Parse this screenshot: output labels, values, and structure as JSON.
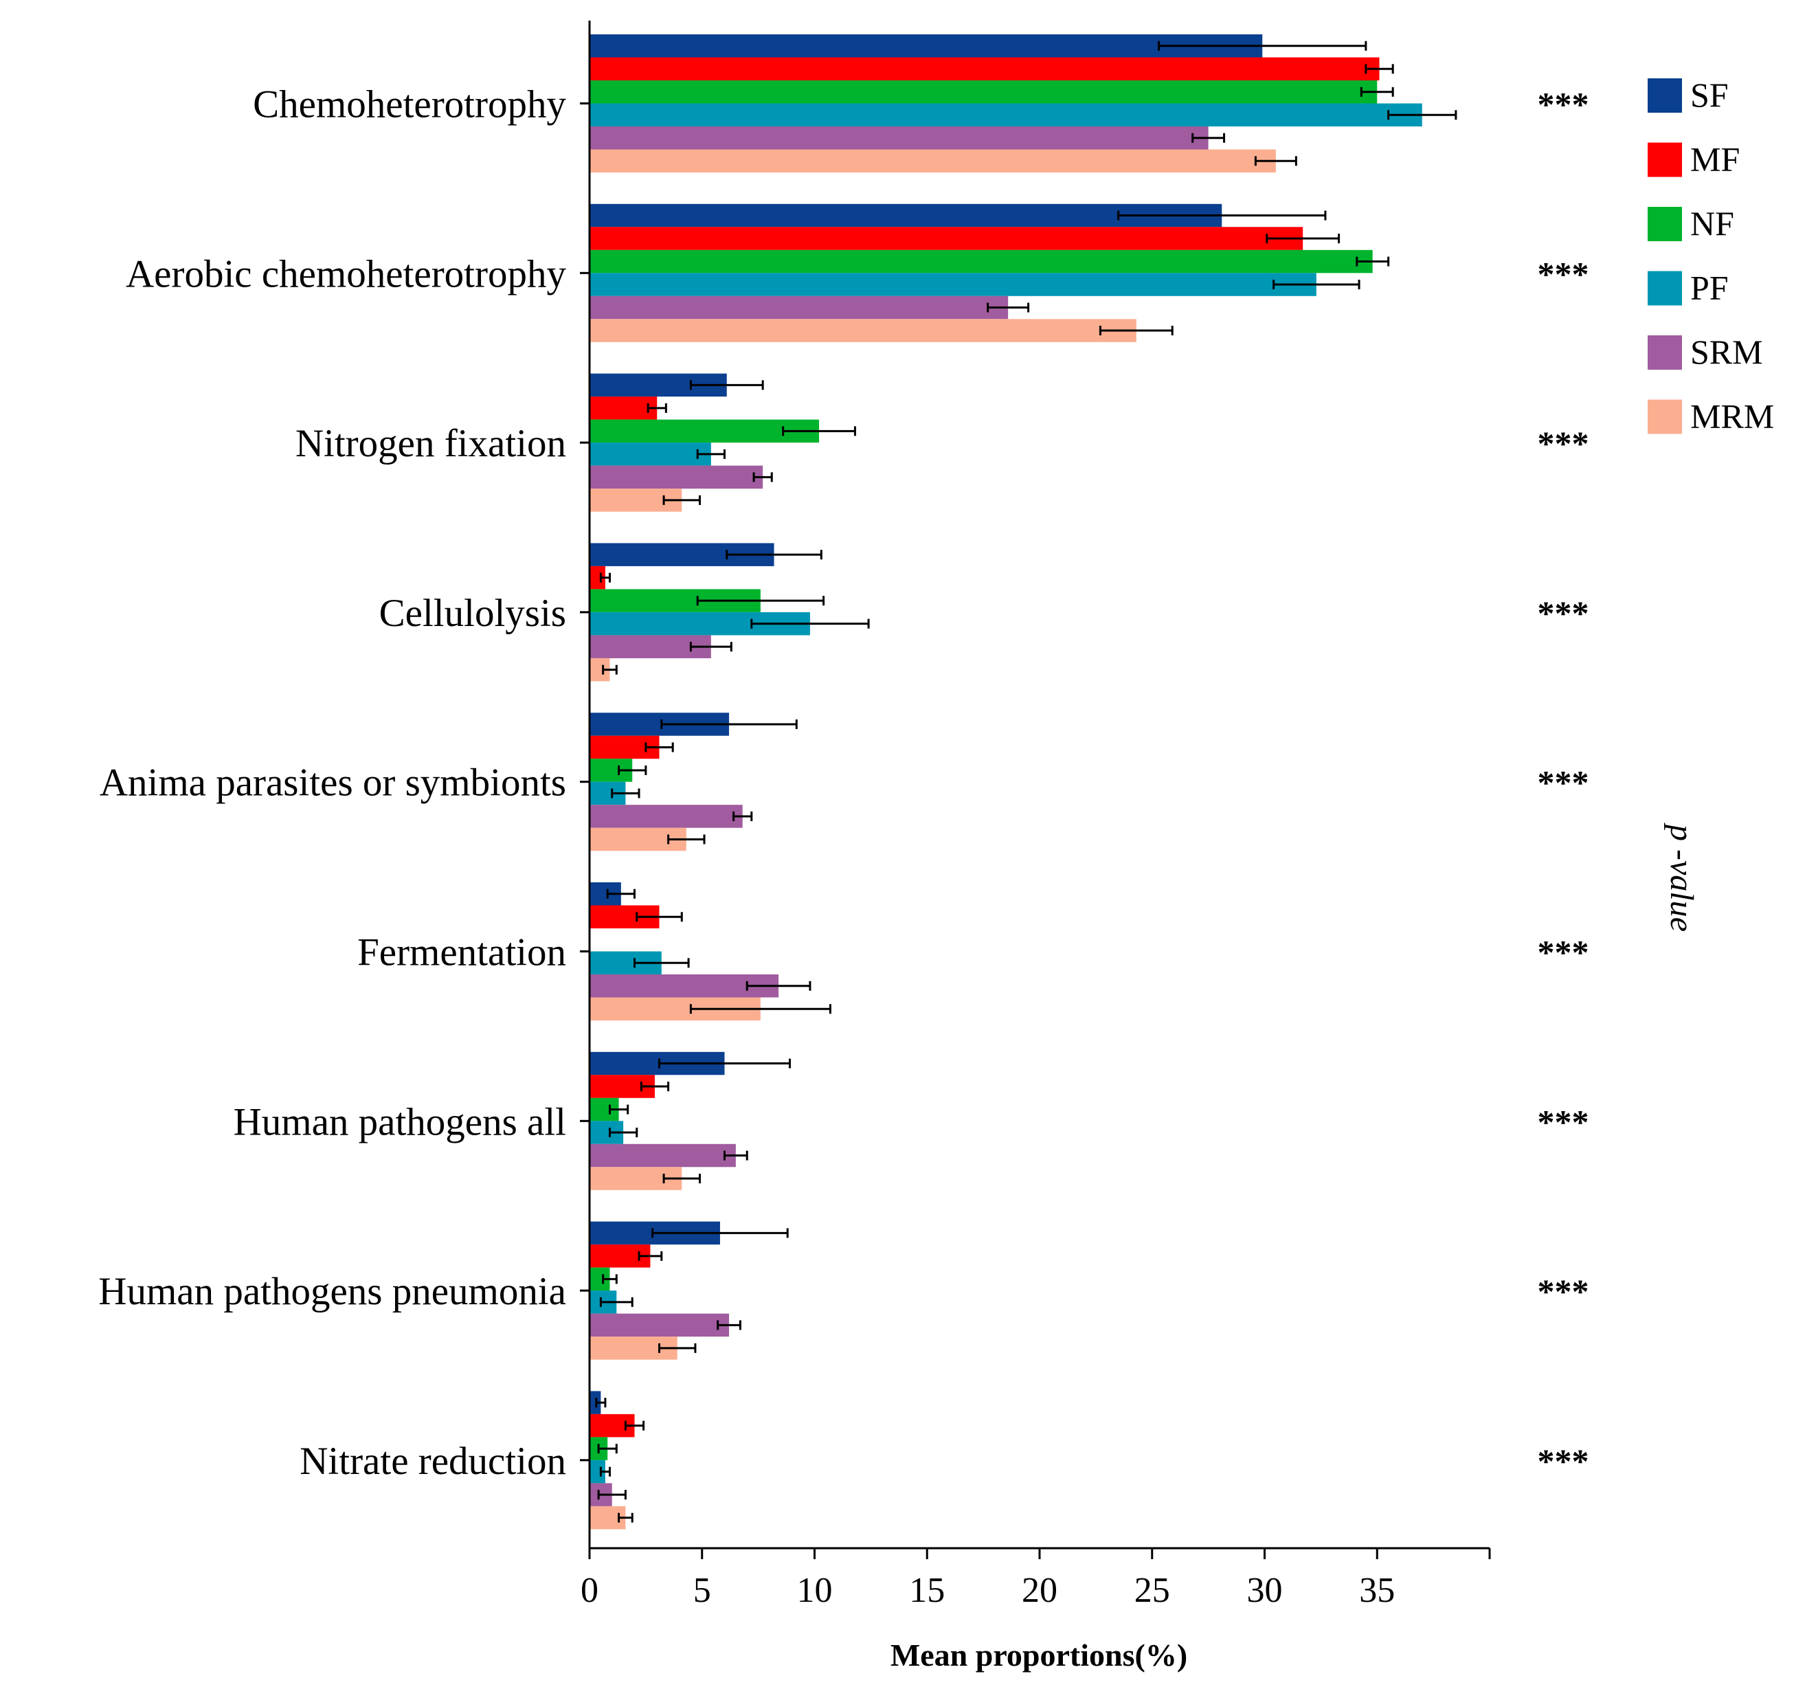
{
  "chart_data": {
    "type": "bar",
    "orientation": "horizontal",
    "title": "",
    "xlabel": "Mean proportions(%)",
    "ylabel": "",
    "side_label": "p -value",
    "xlim": [
      0,
      40
    ],
    "xticks": [
      0,
      5,
      10,
      15,
      20,
      25,
      30,
      35
    ],
    "grid": false,
    "legend_position": "top-right",
    "categories": [
      "Chemoheterotrophy",
      "Aerobic chemoheterotrophy",
      "Nitrogen fixation",
      "Cellulolysis",
      "Anima parasites or symbionts",
      "Fermentation",
      "Human pathogens all",
      "Human pathogens pneumonia",
      "Nitrate  reduction"
    ],
    "significance": [
      "***",
      "***",
      "***",
      "***",
      "***",
      "***",
      "***",
      "***",
      "***"
    ],
    "series": [
      {
        "name": "SF",
        "color": "#0b3f8f",
        "values": [
          29.9,
          28.1,
          6.1,
          8.2,
          6.2,
          1.4,
          6.0,
          5.8,
          0.5
        ],
        "errors": [
          4.6,
          4.6,
          1.6,
          2.1,
          3.0,
          0.6,
          2.9,
          3.0,
          0.2
        ]
      },
      {
        "name": "MF",
        "color": "#ff0000",
        "values": [
          35.1,
          31.7,
          3.0,
          0.7,
          3.1,
          3.1,
          2.9,
          2.7,
          2.0
        ],
        "errors": [
          0.6,
          1.6,
          0.4,
          0.2,
          0.6,
          1.0,
          0.6,
          0.5,
          0.4
        ]
      },
      {
        "name": "NF",
        "color": "#00b32d",
        "values": [
          35.0,
          34.8,
          10.2,
          7.6,
          1.9,
          0.0,
          1.3,
          0.9,
          0.8
        ],
        "errors": [
          0.7,
          0.7,
          1.6,
          2.8,
          0.6,
          0.0,
          0.4,
          0.3,
          0.4
        ]
      },
      {
        "name": "PF",
        "color": "#0097b4",
        "values": [
          37.0,
          32.3,
          5.4,
          9.8,
          1.6,
          3.2,
          1.5,
          1.2,
          0.7
        ],
        "errors": [
          1.5,
          1.9,
          0.6,
          2.6,
          0.6,
          1.2,
          0.6,
          0.7,
          0.2
        ]
      },
      {
        "name": "SRM",
        "color": "#a05c9e",
        "values": [
          27.5,
          18.6,
          7.7,
          5.4,
          6.8,
          8.4,
          6.5,
          6.2,
          1.0
        ],
        "errors": [
          0.7,
          0.9,
          0.4,
          0.9,
          0.4,
          1.4,
          0.5,
          0.5,
          0.6
        ]
      },
      {
        "name": "MRM",
        "color": "#fcae91",
        "values": [
          30.5,
          24.3,
          4.1,
          0.9,
          4.3,
          7.6,
          4.1,
          3.9,
          1.6
        ],
        "errors": [
          0.9,
          1.6,
          0.8,
          0.3,
          0.8,
          3.1,
          0.8,
          0.8,
          0.3
        ]
      }
    ]
  }
}
